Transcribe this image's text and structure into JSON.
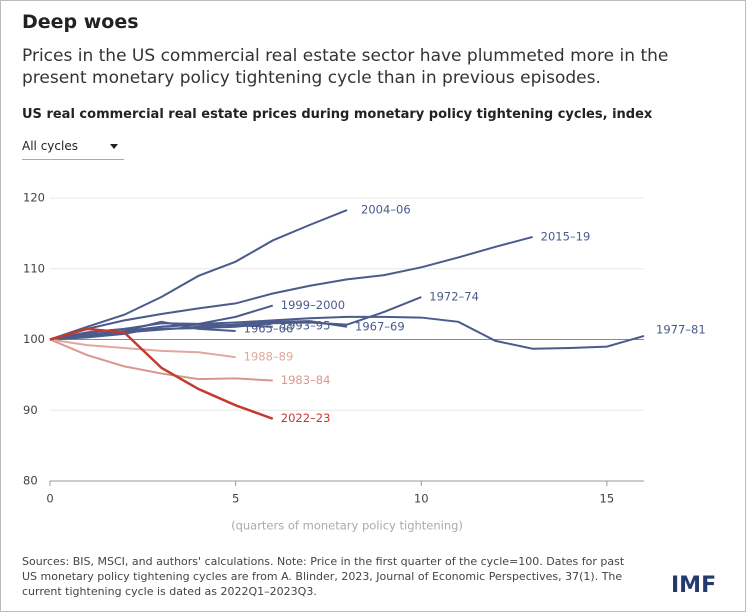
{
  "chart_data": {
    "type": "line",
    "title": "Deep woes",
    "subtitle": "Prices in the US commercial real estate sector have plummeted more in the present monetary policy tightening cycle than in previous episodes.",
    "chart_title": "US real commercial real estate prices during monetary policy tightening cycles, index",
    "dropdown": "All cycles",
    "xlabel": "(quarters of monetary policy tightening)",
    "note": "Sources: BIS, MSCI, and authors' calculations. Note: Price in the first quarter of the cycle=100. Dates for past US monetary policy tightening cycles are from A. Blinder, 2023, Journal of Economic Perspectives, 37(1). The current tightening cycle is dated as 2022Q1–2023Q3.",
    "logo": "IMF",
    "x": [
      0,
      1,
      2,
      3,
      4,
      5,
      6,
      7,
      8,
      9,
      10,
      11,
      12,
      13,
      14,
      15,
      16
    ],
    "xlim": [
      0,
      16
    ],
    "xticks": [
      0,
      5,
      10,
      15
    ],
    "ylim": [
      80,
      120
    ],
    "yticks": [
      80,
      90,
      100,
      110,
      120
    ],
    "reference_line": 100,
    "grid": true,
    "series": [
      {
        "name": "2004–06",
        "color": "#4a5b8c",
        "values": [
          100,
          101.8,
          103.5,
          106,
          109,
          111,
          114,
          116.2,
          118.3,
          null,
          null,
          null,
          null,
          null,
          null,
          null,
          null
        ]
      },
      {
        "name": "2015–19",
        "color": "#4a5b8c",
        "values": [
          100,
          101.5,
          102.7,
          103.6,
          104.4,
          105.1,
          106.5,
          107.6,
          108.5,
          109.1,
          110.2,
          111.6,
          113.1,
          114.5,
          null,
          null,
          null
        ]
      },
      {
        "name": "1999–2000",
        "color": "#4a5b8c",
        "values": [
          100,
          100.6,
          101.2,
          101.8,
          102.2,
          103.2,
          104.8,
          null,
          null,
          null,
          null,
          null,
          null,
          null,
          null,
          null,
          null
        ]
      },
      {
        "name": "1972–74",
        "color": "#4a5b8c",
        "values": [
          100,
          100.8,
          101,
          101.5,
          101.6,
          101.8,
          102.3,
          102.4,
          102.1,
          103.9,
          106,
          null,
          null,
          null,
          null,
          null,
          null
        ]
      },
      {
        "name": "1977–81",
        "color": "#4a5b8c",
        "values": [
          100,
          101,
          101.5,
          102.3,
          102.2,
          102.4,
          102.7,
          103,
          103.2,
          103.2,
          103.1,
          102.5,
          99.8,
          98.7,
          98.8,
          99,
          100.5
        ]
      },
      {
        "name": "1967–69",
        "color": "#4a5b8c",
        "values": [
          100,
          100.5,
          101,
          101.4,
          101.8,
          102.1,
          102.5,
          102.6,
          101.8,
          null,
          null,
          null,
          null,
          null,
          null,
          null,
          null
        ]
      },
      {
        "name": "1993–95",
        "color": "#4a5b8c",
        "values": [
          100,
          100.3,
          100.8,
          101.8,
          102.1,
          102,
          101.8,
          null,
          null,
          null,
          null,
          null,
          null,
          null,
          null,
          null,
          null
        ]
      },
      {
        "name": "1965–66",
        "color": "#4a5b8c",
        "values": [
          100,
          100.7,
          101.2,
          102.5,
          101.5,
          101.2,
          null,
          null,
          null,
          null,
          null,
          null,
          null,
          null,
          null,
          null,
          null
        ]
      },
      {
        "name": "1988–89",
        "color": "#e3a69d",
        "values": [
          100,
          99.2,
          98.8,
          98.4,
          98.2,
          97.5,
          null,
          null,
          null,
          null,
          null,
          null,
          null,
          null,
          null,
          null,
          null
        ]
      },
      {
        "name": "1983–84",
        "color": "#d9988d",
        "values": [
          100,
          97.8,
          96.2,
          95.2,
          94.4,
          94.5,
          94.2,
          null,
          null,
          null,
          null,
          null,
          null,
          null,
          null,
          null,
          null
        ]
      },
      {
        "name": "2022–23",
        "color": "#c4392f",
        "values": [
          100,
          101.5,
          101,
          96,
          93,
          90.7,
          88.8,
          null,
          null,
          null,
          null,
          null,
          null,
          null,
          null,
          null,
          null
        ]
      }
    ]
  }
}
